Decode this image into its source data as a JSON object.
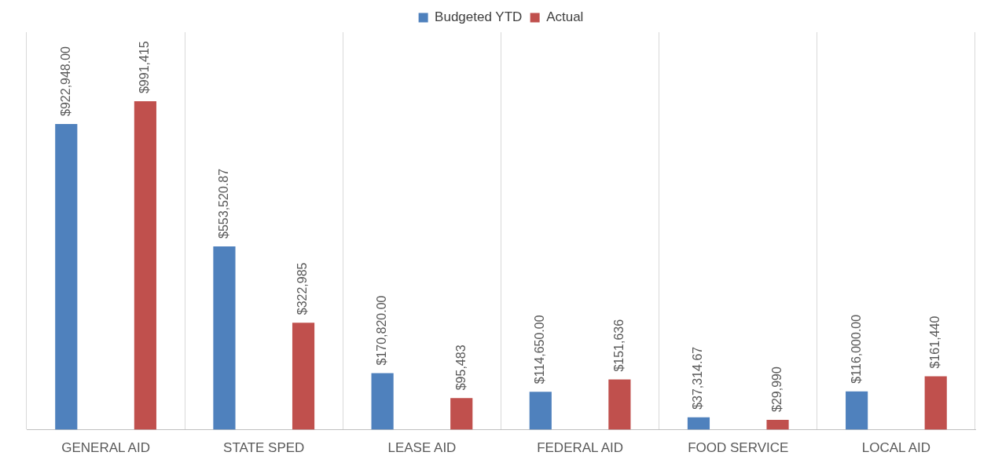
{
  "chart_data": {
    "type": "bar",
    "categories": [
      "GENERAL AID",
      "STATE SPED",
      "LEASE AID",
      "FEDERAL AID",
      "FOOD SERVICE",
      "LOCAL AID"
    ],
    "series": [
      {
        "name": "Budgeted YTD",
        "color": "#4f81bd",
        "values": [
          922948,
          553520.87,
          170820,
          114650,
          37314.67,
          116000
        ],
        "value_labels": [
          "$922,948.00",
          "$553,520.87",
          "$170,820.00",
          "$114,650.00",
          "$37,314.67",
          "$116,000.00"
        ]
      },
      {
        "name": "Actual",
        "color": "#c0504d",
        "values": [
          991415,
          322985,
          95483,
          151636,
          29990,
          161440
        ],
        "value_labels": [
          "$991,415",
          "$322,985",
          "$95,483",
          "$151,636",
          "$29,990",
          "$161,440"
        ]
      }
    ],
    "grid": "x",
    "legend": "top",
    "tick_labels": "x"
  }
}
